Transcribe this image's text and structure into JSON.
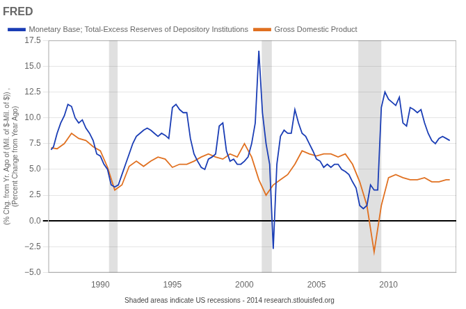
{
  "chart_data": {
    "type": "line",
    "title": "FRED",
    "ylabel": [
      "(% Chg. from Yr. Ago of (Mil. of $-Mil. of $)) ,",
      "(Percent Change from Year Ago)"
    ],
    "annotations": [
      "Shaded areas indicate US recessions - 2014 research.stlouisfed.org"
    ],
    "legend": "top",
    "grid": "y",
    "xlim": [
      1986.4,
      2014.7
    ],
    "xticks": [
      1990,
      1995,
      2000,
      2005,
      2010
    ],
    "ylim": [
      -5.0,
      17.5
    ],
    "yticks": [
      {
        "value": -5.0,
        "label": "−5.0"
      },
      {
        "value": -2.5,
        "label": "−2.5"
      },
      {
        "value": 0.0,
        "label": "0.0"
      },
      {
        "value": 2.5,
        "label": "2.5"
      },
      {
        "value": 5.0,
        "label": "5.0"
      },
      {
        "value": 7.5,
        "label": "7.5"
      },
      {
        "value": 10.0,
        "label": "10.0"
      },
      {
        "value": 12.5,
        "label": "12.5"
      },
      {
        "value": 15.0,
        "label": "15.0"
      },
      {
        "value": 17.5,
        "label": "17.5"
      }
    ],
    "recession_bands": [
      [
        1990.6,
        1991.2
      ],
      [
        2001.2,
        2001.9
      ],
      [
        2007.9,
        2009.5
      ]
    ],
    "series": [
      {
        "name": "Monetary Base; Total-Excess Reserves of Depository Institutions",
        "color": "#1a3db5",
        "x": [
          1986.58,
          1986.75,
          1987.0,
          1987.25,
          1987.5,
          1987.75,
          1988.0,
          1988.25,
          1988.5,
          1988.75,
          1989.0,
          1989.25,
          1989.5,
          1989.75,
          1990.0,
          1990.25,
          1990.5,
          1990.75,
          1991.0,
          1991.25,
          1991.5,
          1991.75,
          1992.0,
          1992.25,
          1992.5,
          1992.75,
          1993.0,
          1993.25,
          1993.5,
          1993.75,
          1994.0,
          1994.25,
          1994.5,
          1994.75,
          1995.0,
          1995.25,
          1995.5,
          1995.75,
          1996.0,
          1996.25,
          1996.5,
          1996.75,
          1997.0,
          1997.25,
          1997.5,
          1997.75,
          1998.0,
          1998.25,
          1998.5,
          1998.75,
          1999.0,
          1999.25,
          1999.5,
          1999.75,
          2000.0,
          2000.25,
          2000.5,
          2000.75,
          2001.0,
          2001.25,
          2001.5,
          2001.75,
          2002.0,
          2002.25,
          2002.5,
          2002.75,
          2003.0,
          2003.25,
          2003.5,
          2003.75,
          2004.0,
          2004.25,
          2004.5,
          2004.75,
          2005.0,
          2005.25,
          2005.5,
          2005.75,
          2006.0,
          2006.25,
          2006.5,
          2006.75,
          2007.0,
          2007.25,
          2007.5,
          2007.75,
          2008.0,
          2008.25,
          2008.5,
          2008.75,
          2009.0,
          2009.25,
          2009.5,
          2009.75,
          2010.0,
          2010.25,
          2010.5,
          2010.75,
          2011.0,
          2011.25,
          2011.5,
          2011.75,
          2012.0,
          2012.25,
          2012.5,
          2012.75,
          2013.0,
          2013.25,
          2013.5,
          2013.75,
          2014.0,
          2014.25
        ],
        "values": [
          6.9,
          7.2,
          8.5,
          9.5,
          10.2,
          11.3,
          11.1,
          10.0,
          9.5,
          9.8,
          9.0,
          8.5,
          7.8,
          6.5,
          6.3,
          5.5,
          5.0,
          3.5,
          3.3,
          3.5,
          4.5,
          5.5,
          6.5,
          7.5,
          8.2,
          8.5,
          8.8,
          9.0,
          8.8,
          8.5,
          8.2,
          8.5,
          8.3,
          8.0,
          11.0,
          11.3,
          10.8,
          10.5,
          10.5,
          8.0,
          6.5,
          5.8,
          5.2,
          5.0,
          6.0,
          6.2,
          6.5,
          9.2,
          9.5,
          6.8,
          5.8,
          6.0,
          5.5,
          5.5,
          5.8,
          6.2,
          7.5,
          9.5,
          16.5,
          10.5,
          7.5,
          5.5,
          -2.7,
          5.5,
          8.2,
          8.8,
          8.5,
          8.5,
          10.8,
          9.5,
          8.5,
          8.2,
          7.5,
          6.8,
          6.0,
          5.8,
          5.2,
          5.5,
          5.2,
          5.5,
          5.5,
          5.0,
          4.8,
          4.5,
          3.8,
          3.2,
          1.5,
          1.2,
          1.5,
          3.5,
          3.0,
          3.0,
          11.0,
          12.5,
          11.8,
          11.5,
          11.2,
          12.0,
          9.5,
          9.2,
          11.0,
          10.8,
          10.5,
          10.8,
          9.5,
          8.5,
          7.8,
          7.5,
          8.0,
          8.2,
          8.0,
          7.8
        ]
      },
      {
        "name": "Gross Domestic Product",
        "color": "#e07020",
        "x": [
          1986.58,
          1987.0,
          1987.5,
          1988.0,
          1988.5,
          1989.0,
          1989.5,
          1990.0,
          1990.5,
          1991.0,
          1991.5,
          1992.0,
          1992.5,
          1993.0,
          1993.5,
          1994.0,
          1994.5,
          1995.0,
          1995.5,
          1996.0,
          1996.5,
          1997.0,
          1997.5,
          1998.0,
          1998.5,
          1999.0,
          1999.5,
          2000.0,
          2000.5,
          2001.0,
          2001.5,
          2002.0,
          2002.5,
          2003.0,
          2003.5,
          2004.0,
          2004.5,
          2005.0,
          2005.5,
          2006.0,
          2006.5,
          2007.0,
          2007.5,
          2008.0,
          2008.5,
          2009.0,
          2009.5,
          2010.0,
          2010.5,
          2011.0,
          2011.5,
          2012.0,
          2012.5,
          2013.0,
          2013.5,
          2014.0,
          2014.25
        ],
        "values": [
          7.1,
          7.0,
          7.5,
          8.5,
          8.0,
          7.8,
          7.2,
          6.8,
          5.2,
          3.0,
          3.5,
          5.3,
          5.8,
          5.3,
          5.8,
          6.2,
          6.0,
          5.2,
          5.5,
          5.5,
          5.8,
          6.2,
          6.5,
          6.2,
          6.0,
          6.5,
          6.2,
          7.5,
          6.2,
          4.0,
          2.5,
          3.5,
          4.0,
          4.5,
          5.5,
          6.8,
          6.5,
          6.3,
          6.5,
          6.5,
          6.2,
          6.5,
          5.5,
          3.8,
          1.5,
          -3.0,
          1.5,
          4.2,
          4.5,
          4.2,
          4.0,
          4.0,
          4.2,
          3.8,
          3.8,
          4.0,
          4.0
        ]
      }
    ]
  }
}
